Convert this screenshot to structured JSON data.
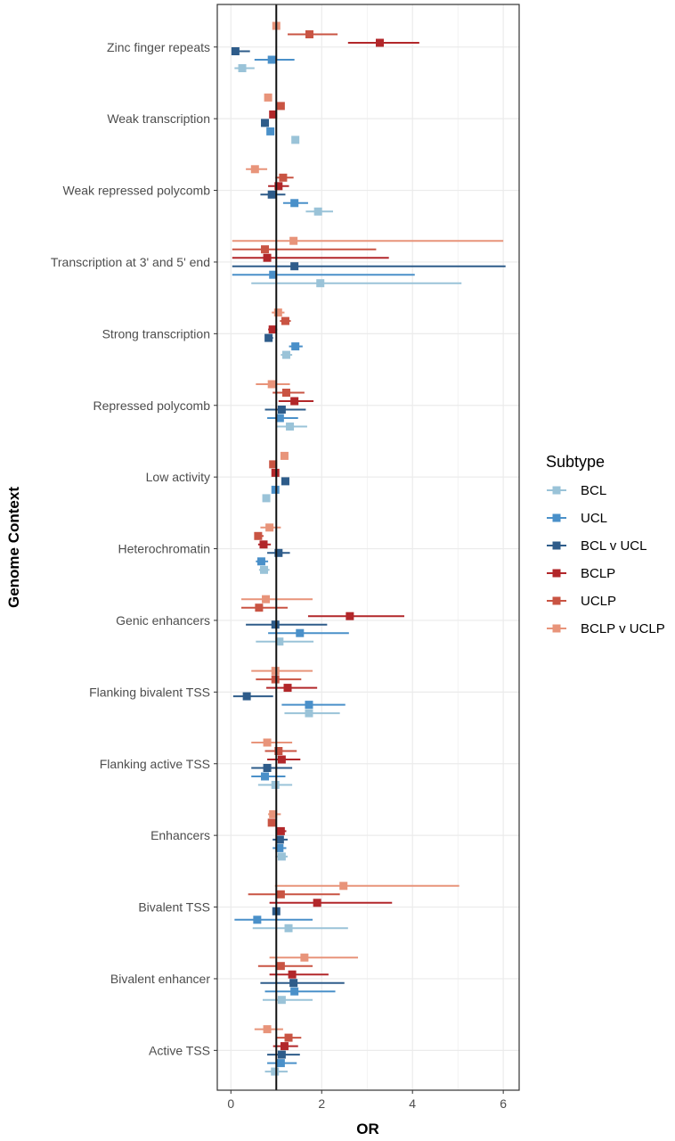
{
  "chart_data": {
    "type": "forest",
    "xlabel": "OR",
    "ylabel": "Genome Context",
    "xlim": [
      -0.3,
      6.35
    ],
    "xticks": [
      0,
      2,
      4,
      6
    ],
    "reference_line": 1,
    "grid": true,
    "legend": {
      "title": "Subtype",
      "position": "right"
    },
    "categories": [
      "Zinc finger repeats",
      "Weak transcription",
      "Weak repressed polycomb",
      "Transcription at 3' and 5' end",
      "Strong transcription",
      "Repressed polycomb",
      "Low activity",
      "Heterochromatin",
      "Genic enhancers",
      "Flanking bivalent TSS",
      "Flanking active TSS",
      "Enhancers",
      "Bivalent TSS",
      "Bivalent enhancer",
      "Active TSS"
    ],
    "series": [
      {
        "name": "BCLP v UCLP",
        "color": "#E8947A",
        "points": [
          {
            "or": 1.0,
            "lo": null,
            "hi": null
          },
          {
            "or": 0.82,
            "lo": null,
            "hi": null
          },
          {
            "or": 0.53,
            "lo": 0.33,
            "hi": 0.8
          },
          {
            "or": 1.38,
            "lo": 0.03,
            "hi": 6.0
          },
          {
            "or": 1.04,
            "lo": 0.9,
            "hi": 1.18
          },
          {
            "or": 0.9,
            "lo": 0.55,
            "hi": 1.3
          },
          {
            "or": 1.18,
            "lo": null,
            "hi": null
          },
          {
            "or": 0.85,
            "lo": 0.65,
            "hi": 1.1
          },
          {
            "or": 0.77,
            "lo": 0.23,
            "hi": 1.8
          },
          {
            "or": 0.98,
            "lo": 0.45,
            "hi": 1.8
          },
          {
            "or": 0.8,
            "lo": 0.45,
            "hi": 1.35
          },
          {
            "or": 0.93,
            "lo": 0.82,
            "hi": 1.1
          },
          {
            "or": 2.48,
            "lo": 0.97,
            "hi": 5.03
          },
          {
            "or": 1.62,
            "lo": 0.85,
            "hi": 2.8
          },
          {
            "or": 0.8,
            "lo": 0.52,
            "hi": 1.15
          }
        ]
      },
      {
        "name": "UCLP",
        "color": "#C95443",
        "points": [
          {
            "or": 1.73,
            "lo": 1.25,
            "hi": 2.35
          },
          {
            "or": 1.1,
            "lo": null,
            "hi": null
          },
          {
            "or": 1.15,
            "lo": 0.98,
            "hi": 1.38
          },
          {
            "or": 0.75,
            "lo": 0.03,
            "hi": 3.2
          },
          {
            "or": 1.2,
            "lo": 1.08,
            "hi": 1.32
          },
          {
            "or": 1.22,
            "lo": 0.92,
            "hi": 1.62
          },
          {
            "or": 0.93,
            "lo": null,
            "hi": null
          },
          {
            "or": 0.6,
            "lo": 0.52,
            "hi": 0.72
          },
          {
            "or": 0.62,
            "lo": 0.23,
            "hi": 1.25
          },
          {
            "or": 0.98,
            "lo": 0.55,
            "hi": 1.55
          },
          {
            "or": 1.05,
            "lo": 0.75,
            "hi": 1.45
          },
          {
            "or": 0.9,
            "lo": null,
            "hi": null
          },
          {
            "or": 1.1,
            "lo": 0.38,
            "hi": 2.4
          },
          {
            "or": 1.1,
            "lo": 0.6,
            "hi": 1.8
          },
          {
            "or": 1.27,
            "lo": 1.0,
            "hi": 1.55
          }
        ]
      },
      {
        "name": "BCLP",
        "color": "#B2272A",
        "points": [
          {
            "or": 3.28,
            "lo": 2.58,
            "hi": 4.15
          },
          {
            "or": 0.93,
            "lo": null,
            "hi": null
          },
          {
            "or": 1.05,
            "lo": 0.82,
            "hi": 1.28
          },
          {
            "or": 0.8,
            "lo": 0.03,
            "hi": 3.48
          },
          {
            "or": 0.92,
            "lo": 0.82,
            "hi": 1.02
          },
          {
            "or": 1.4,
            "lo": 1.05,
            "hi": 1.82
          },
          {
            "or": 0.98,
            "lo": null,
            "hi": null
          },
          {
            "or": 0.72,
            "lo": 0.6,
            "hi": 0.88
          },
          {
            "or": 2.62,
            "lo": 1.7,
            "hi": 3.82
          },
          {
            "or": 1.25,
            "lo": 0.78,
            "hi": 1.9
          },
          {
            "or": 1.12,
            "lo": 0.8,
            "hi": 1.53
          },
          {
            "or": 1.1,
            "lo": 1.0,
            "hi": 1.22
          },
          {
            "or": 1.9,
            "lo": 0.85,
            "hi": 3.55
          },
          {
            "or": 1.35,
            "lo": 0.85,
            "hi": 2.15
          },
          {
            "or": 1.18,
            "lo": 0.93,
            "hi": 1.48
          }
        ]
      },
      {
        "name": "BCL v UCL",
        "color": "#2E5C8A",
        "points": [
          {
            "or": 0.1,
            "lo": 0.03,
            "hi": 0.42
          },
          {
            "or": 0.75,
            "lo": null,
            "hi": null
          },
          {
            "or": 0.9,
            "lo": 0.65,
            "hi": 1.2
          },
          {
            "or": 1.4,
            "lo": 0.03,
            "hi": 6.05
          },
          {
            "or": 0.83,
            "lo": 0.75,
            "hi": 0.93
          },
          {
            "or": 1.12,
            "lo": 0.75,
            "hi": 1.65
          },
          {
            "or": 1.2,
            "lo": 1.12,
            "hi": 1.28
          },
          {
            "or": 1.05,
            "lo": 0.8,
            "hi": 1.3
          },
          {
            "or": 0.98,
            "lo": 0.33,
            "hi": 2.12
          },
          {
            "or": 0.35,
            "lo": 0.05,
            "hi": 0.93
          },
          {
            "or": 0.8,
            "lo": 0.45,
            "hi": 1.35
          },
          {
            "or": 1.08,
            "lo": 0.92,
            "hi": 1.25
          },
          {
            "or": 1.0,
            "lo": null,
            "hi": null
          },
          {
            "or": 1.38,
            "lo": 0.65,
            "hi": 2.5
          },
          {
            "or": 1.12,
            "lo": 0.8,
            "hi": 1.52
          }
        ]
      },
      {
        "name": "UCL",
        "color": "#4A90C9",
        "points": [
          {
            "or": 0.9,
            "lo": 0.52,
            "hi": 1.4
          },
          {
            "or": 0.87,
            "lo": null,
            "hi": null
          },
          {
            "or": 1.4,
            "lo": 1.15,
            "hi": 1.7
          },
          {
            "or": 0.93,
            "lo": 0.03,
            "hi": 4.05
          },
          {
            "or": 1.42,
            "lo": 1.28,
            "hi": 1.58
          },
          {
            "or": 1.08,
            "lo": 0.8,
            "hi": 1.48
          },
          {
            "or": 0.98,
            "lo": null,
            "hi": null
          },
          {
            "or": 0.67,
            "lo": 0.55,
            "hi": 0.82
          },
          {
            "or": 1.52,
            "lo": 0.82,
            "hi": 2.6
          },
          {
            "or": 1.72,
            "lo": 1.12,
            "hi": 2.52
          },
          {
            "or": 0.75,
            "lo": 0.45,
            "hi": 1.2
          },
          {
            "or": 1.07,
            "lo": 0.92,
            "hi": 1.22
          },
          {
            "or": 0.58,
            "lo": 0.08,
            "hi": 1.8
          },
          {
            "or": 1.4,
            "lo": 0.75,
            "hi": 2.3
          },
          {
            "or": 1.1,
            "lo": 0.8,
            "hi": 1.45
          }
        ]
      },
      {
        "name": "BCL",
        "color": "#9AC3D8",
        "points": [
          {
            "or": 0.25,
            "lo": 0.08,
            "hi": 0.52
          },
          {
            "or": 1.42,
            "lo": null,
            "hi": null
          },
          {
            "or": 1.92,
            "lo": 1.65,
            "hi": 2.25
          },
          {
            "or": 1.97,
            "lo": 0.45,
            "hi": 5.08
          },
          {
            "or": 1.22,
            "lo": 1.1,
            "hi": 1.35
          },
          {
            "or": 1.3,
            "lo": 1.0,
            "hi": 1.68
          },
          {
            "or": 0.78,
            "lo": null,
            "hi": null
          },
          {
            "or": 0.73,
            "lo": 0.62,
            "hi": 0.85
          },
          {
            "or": 1.07,
            "lo": 0.55,
            "hi": 1.82
          },
          {
            "or": 1.72,
            "lo": 1.18,
            "hi": 2.4
          },
          {
            "or": 0.98,
            "lo": 0.6,
            "hi": 1.35
          },
          {
            "or": 1.12,
            "lo": 0.98,
            "hi": 1.25
          },
          {
            "or": 1.27,
            "lo": 0.48,
            "hi": 2.58
          },
          {
            "or": 1.12,
            "lo": 0.7,
            "hi": 1.8
          },
          {
            "or": 0.97,
            "lo": 0.75,
            "hi": 1.25
          }
        ]
      }
    ]
  },
  "legend_order": [
    "BCL",
    "UCL",
    "BCL v UCL",
    "BCLP",
    "UCLP",
    "BCLP v UCLP"
  ]
}
